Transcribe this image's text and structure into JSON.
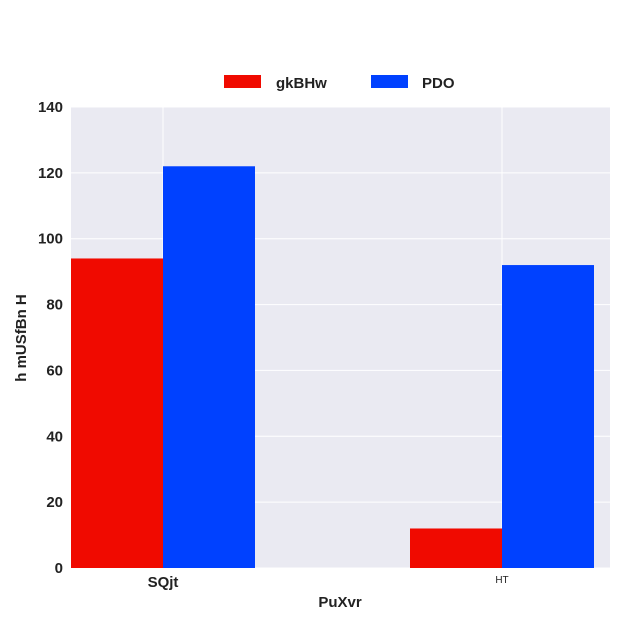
{
  "chart_data": {
    "type": "bar",
    "categories": [
      "SQjt",
      "HT"
    ],
    "series": [
      {
        "name": "gkBHw",
        "values": [
          94,
          12
        ],
        "color": "#f00a00"
      },
      {
        "name": "PDO",
        "values": [
          122,
          92
        ],
        "color": "#0041ff"
      }
    ],
    "xlabel": "PuXvr",
    "ylabel": "h mUSfBn  H",
    "ylim": [
      0,
      140
    ],
    "yticks": [
      0,
      20,
      40,
      60,
      80,
      100,
      120,
      140
    ],
    "grid": true,
    "legend_position": "top-center",
    "background_color": "#eaeaf2"
  }
}
